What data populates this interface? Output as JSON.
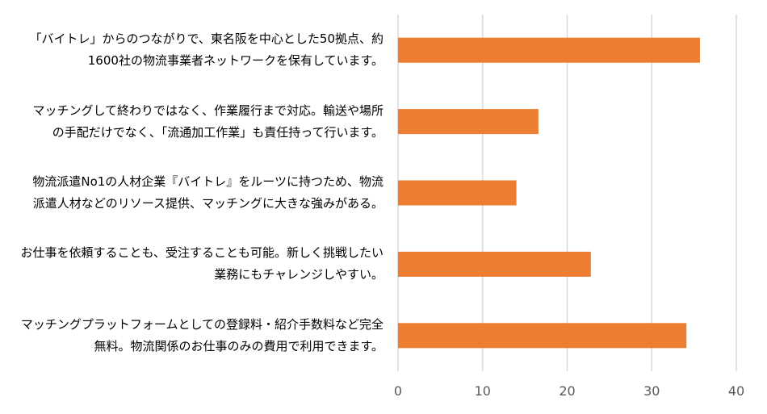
{
  "chart_data": {
    "type": "bar",
    "orientation": "horizontal",
    "title": "",
    "xlabel": "",
    "ylabel": "",
    "categories": [
      [
        "「バイトレ」からのつながりで、東名阪を中心とした50拠点、約",
        "1600社の物流事業者ネットワークを保有しています。"
      ],
      [
        "マッチングして終わりではなく、作業履行まで対応。輸送や場所",
        "の手配だけでなく、「流通加工作業」も責任持って行います。"
      ],
      [
        "物流派遣No1の人材企業『バイトレ』をルーツに持つため、物流",
        "派遣人材などのリソース提供、マッチングに大きな強みがある。"
      ],
      [
        "お仕事を依頼することも、受注することも可能。新しく挑戦したい",
        "業務にもチャレンジしやすい。"
      ],
      [
        "マッチングプラットフォームとしての登録料・紹介手数料など完全",
        "無料。物流関係のお仕事のみの費用で利用できます。"
      ]
    ],
    "values": [
      35.7,
      16.6,
      14.0,
      22.8,
      34.1
    ],
    "xlim": [
      0,
      40
    ],
    "xticks": [
      0,
      10,
      20,
      30,
      40
    ],
    "bar_color": "#ED7D31",
    "grid_color": "#D9D9D9",
    "grid": true,
    "legend": false
  }
}
